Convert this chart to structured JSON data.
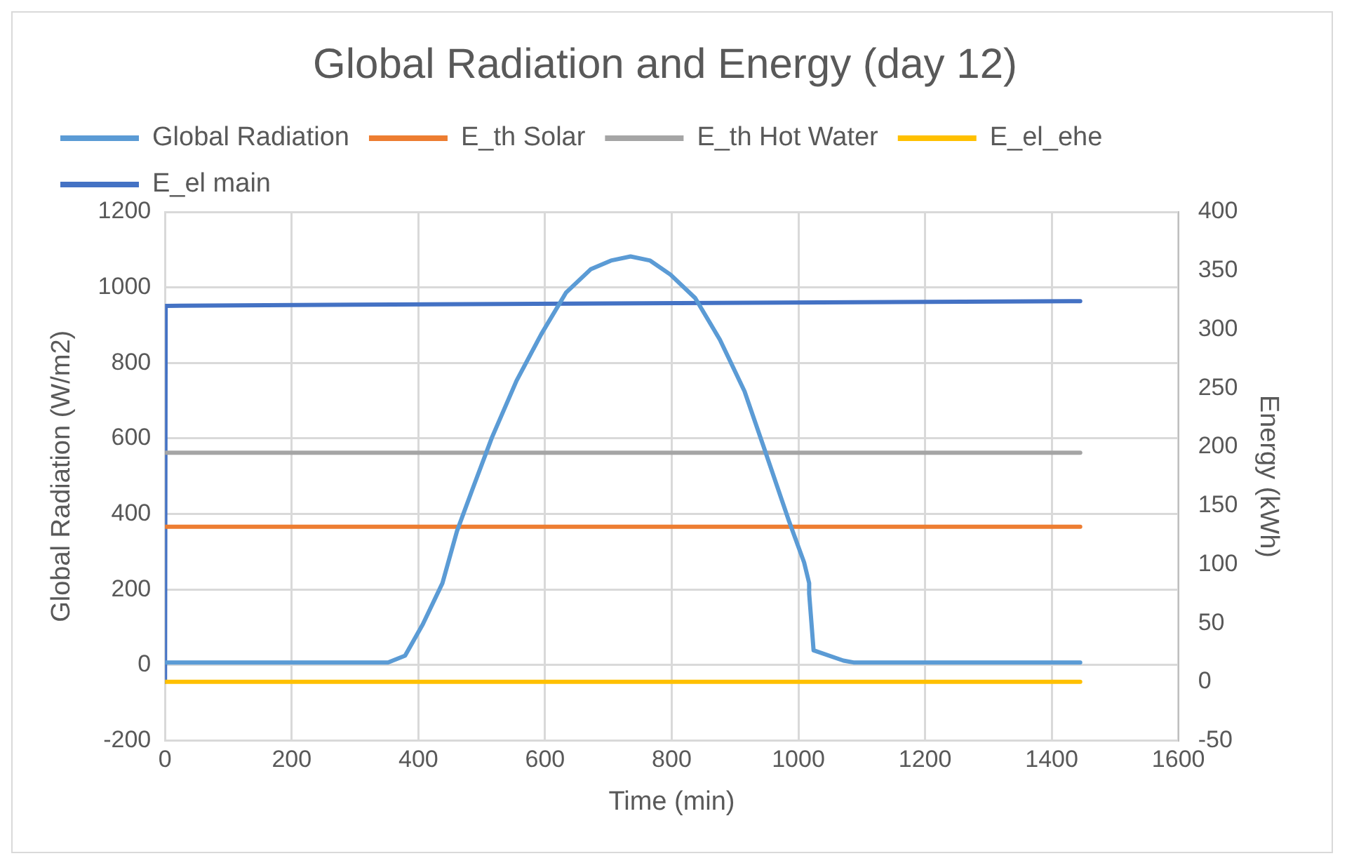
{
  "chart_data": {
    "type": "line",
    "title": "Global Radiation and Energy (day 12)",
    "xlabel": "Time (min)",
    "ylabel": "Global Radiation (W/m2)",
    "y2label": "Energy (kWh)",
    "xlim": [
      0,
      1600
    ],
    "xticks": [
      0,
      200,
      400,
      600,
      800,
      1000,
      1200,
      1400,
      1600
    ],
    "ylim": [
      -200,
      1200
    ],
    "yticks": [
      -200,
      0,
      200,
      400,
      600,
      800,
      1000,
      1200
    ],
    "y2lim": [
      -50,
      400
    ],
    "y2ticks": [
      -50,
      0,
      50,
      100,
      150,
      200,
      250,
      300,
      350,
      400
    ],
    "grid": true,
    "legend": "top",
    "marker": "none",
    "line_style": "solid",
    "series": [
      {
        "name": "Global Radiation",
        "color": "#5b9bd5",
        "x": [
          0,
          352,
          379,
          407,
          438,
          461,
          485,
          516,
          555,
          594,
          633,
          672,
          704,
          735,
          766,
          798,
          837,
          876,
          915,
          946,
          985,
          1009,
          1017,
          1017,
          1024,
          1071,
          1087,
          1445
        ],
        "values": [
          7,
          7,
          25,
          108,
          217,
          355,
          464,
          602,
          753,
          876,
          986,
          1048,
          1071,
          1082,
          1071,
          1034,
          972,
          862,
          725,
          574,
          382,
          272,
          217,
          190,
          39,
          12,
          7,
          7
        ]
      },
      {
        "name": "E_th Solar",
        "color": "#ed7d31",
        "axis": "y2",
        "x": [
          0,
          1445
        ],
        "values": [
          132,
          132
        ]
      },
      {
        "name": "E_th Hot Water",
        "color": "#a5a5a5",
        "axis": "y2",
        "x": [
          0,
          1445
        ],
        "values": [
          195,
          195
        ]
      },
      {
        "name": "E_el_ehe",
        "color": "#ffc000",
        "axis": "y2",
        "x": [
          0,
          1445
        ],
        "values": [
          0,
          0
        ]
      },
      {
        "name": "E_el main",
        "color": "#4472c4",
        "axis": "y2",
        "x": [
          0,
          1,
          300,
          1445
        ],
        "values": [
          0,
          320,
          321,
          324
        ]
      }
    ]
  }
}
